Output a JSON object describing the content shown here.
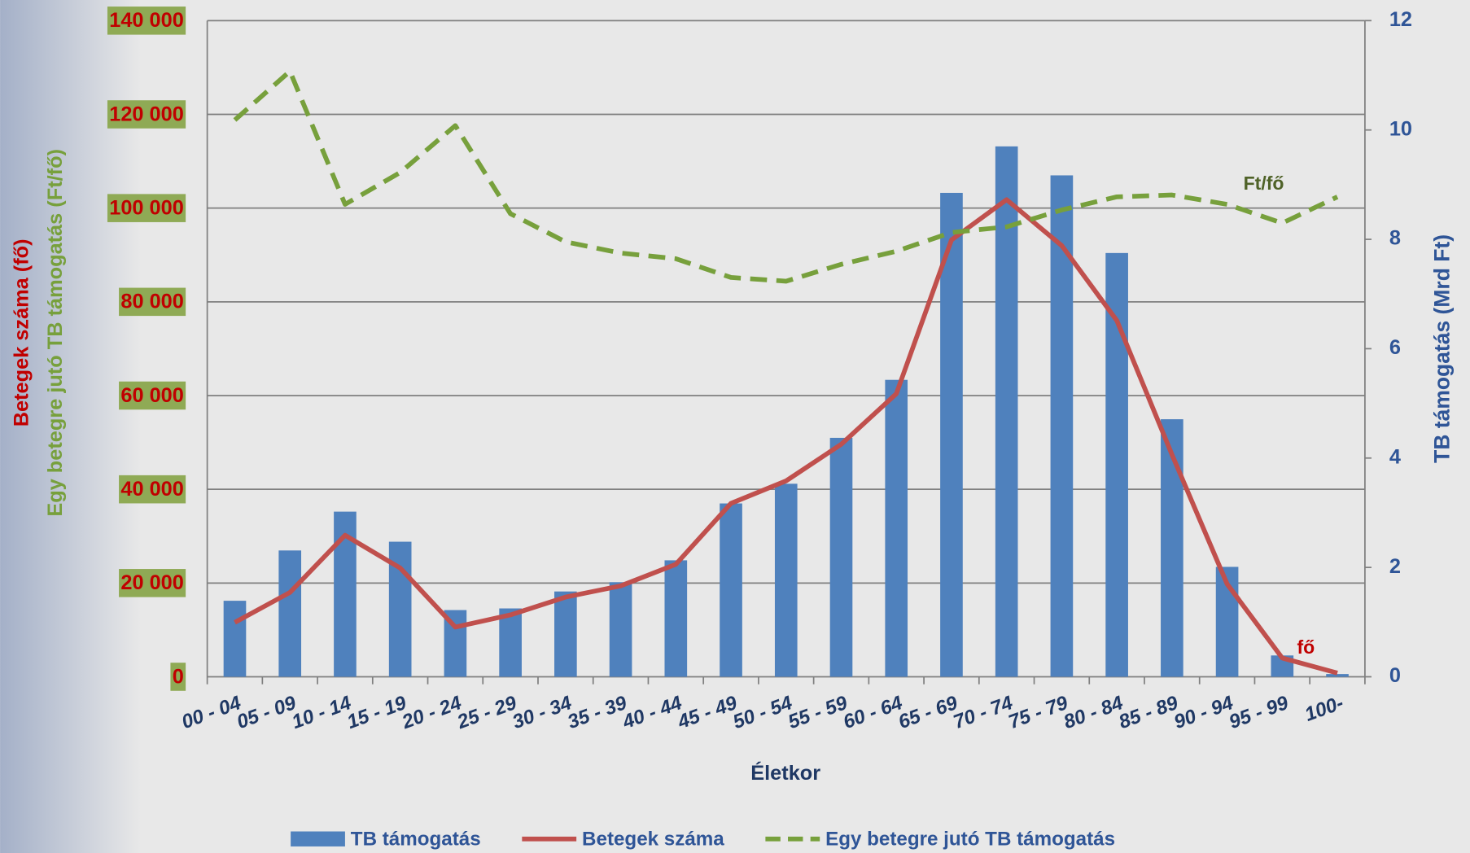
{
  "chart_data": {
    "type": "combo",
    "categories": [
      "00 - 04",
      "05 - 09",
      "10 - 14",
      "15 - 19",
      "20 - 24",
      "25 - 29",
      "30 - 34",
      "35 - 39",
      "40 - 44",
      "45 - 49",
      "50 - 54",
      "55 - 59",
      "60 - 64",
      "65 - 69",
      "70 - 74",
      "75 - 79",
      "80 - 84",
      "85 - 89",
      "90 - 94",
      "95 - 99",
      "100-"
    ],
    "series": [
      {
        "name": "TB támogatás",
        "kind": "bar",
        "axis": "y2",
        "color": "#4f81bd",
        "values": [
          1.39,
          2.31,
          3.02,
          2.47,
          1.22,
          1.25,
          1.56,
          1.73,
          2.13,
          3.17,
          3.53,
          4.37,
          5.43,
          8.85,
          9.7,
          9.17,
          7.75,
          4.71,
          2.01,
          0.39,
          0.05
        ]
      },
      {
        "name": "Betegek száma",
        "kind": "line",
        "color": "#c0504d",
        "values": [
          11600,
          18000,
          30200,
          23200,
          10600,
          13200,
          17000,
          19400,
          24000,
          37000,
          41800,
          49600,
          60400,
          93200,
          101800,
          92000,
          76000,
          47400,
          19800,
          4000,
          800
        ]
      },
      {
        "name": "Egy betegre jutó TB támogatás",
        "kind": "dashed",
        "color": "#77a03c",
        "values": [
          118800,
          129200,
          100800,
          107600,
          117600,
          98800,
          92800,
          90400,
          89200,
          85200,
          84400,
          88000,
          90800,
          94800,
          96000,
          99600,
          102400,
          102800,
          100800,
          96800,
          102400
        ]
      }
    ],
    "ylim": [
      0,
      140000
    ],
    "yticks": [
      {
        "value": 0,
        "label": "0"
      },
      {
        "value": 20000,
        "label": "20 000"
      },
      {
        "value": 40000,
        "label": "40 000"
      },
      {
        "value": 60000,
        "label": "60 000"
      },
      {
        "value": 80000,
        "label": "80 000"
      },
      {
        "value": 100000,
        "label": "100 000"
      },
      {
        "value": 120000,
        "label": "120 000"
      },
      {
        "value": 140000,
        "label": "140 000"
      }
    ],
    "y2lim": [
      0,
      12
    ],
    "y2ticks": [
      0,
      2,
      4,
      6,
      8,
      10,
      12
    ],
    "xlabel": "Életkor",
    "ylabel": [
      "Betegek száma (fő)",
      "Egy betegre jutó TB támogatás (Ft/fő)"
    ],
    "y2label": "TB támogatás (Mrd Ft)",
    "annotations": [
      "Ft/fő",
      "fő"
    ],
    "grid": true
  }
}
